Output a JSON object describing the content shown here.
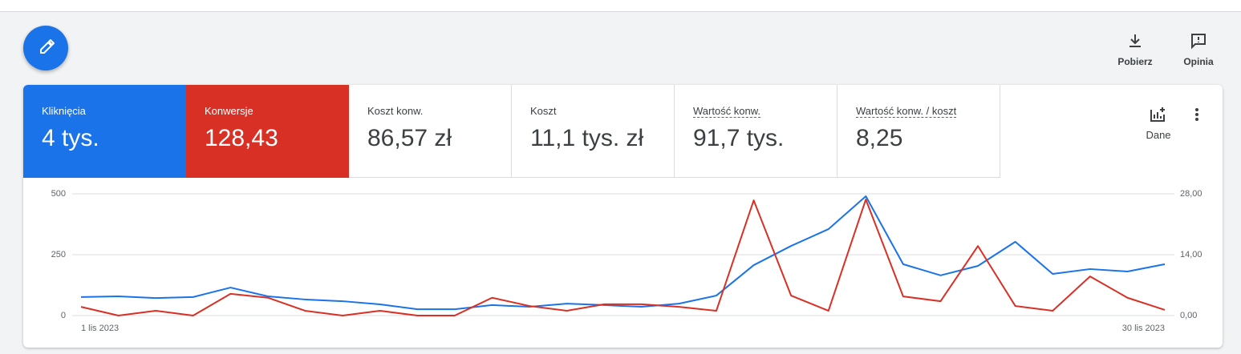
{
  "toolbar": {
    "actions": [
      {
        "label": "Pobierz"
      },
      {
        "label": "Opinia"
      }
    ]
  },
  "scorecards": [
    {
      "value": "4 tys."
    },
    {
      "value": "128,43"
    },
    {
      "label": "Koszt konw.",
      "value": "86,57 zł"
    },
    {
      "label": "Koszt",
      "value": "11,1 tys. zł"
    },
    {
      "label": "Wartość konw.",
      "value": "91,7 tys."
    },
    {
      "label": "Wartość konw. / koszt",
      "value": "8,25"
    }
  ],
  "side": {
    "label": "Dane"
  },
  "chart_data": {
    "type": "line",
    "x": [
      "1 lis 2023",
      null,
      null,
      null,
      null,
      null,
      null,
      null,
      null,
      null,
      null,
      null,
      null,
      null,
      null,
      null,
      null,
      null,
      null,
      null,
      null,
      null,
      null,
      null,
      null,
      null,
      null,
      null,
      null,
      "30 lis 2023"
    ],
    "series": [
      {
        "name": "Kliknięcia",
        "color": "#1a73e8",
        "values": [
          76,
          79,
          72,
          76,
          115,
          79,
          66,
          59,
          46,
          26,
          26,
          43,
          36,
          49,
          43,
          36,
          49,
          82,
          207,
          286,
          355,
          490,
          211,
          165,
          204,
          303,
          171,
          191,
          181,
          211
        ]
      },
      {
        "name": "Konwersje",
        "color": "#d93025",
        "axis": "y2",
        "values": [
          2.0,
          0,
          1.1,
          0,
          5.0,
          4.1,
          1.1,
          0,
          1.1,
          0,
          0,
          4.1,
          2.2,
          1.1,
          2.6,
          2.6,
          2.0,
          1.1,
          26.5,
          4.6,
          1.1,
          26.7,
          4.4,
          3.3,
          16.0,
          2.2,
          1.1,
          9.0,
          4.1,
          1.3
        ]
      }
    ],
    "ylim": [
      0,
      500
    ],
    "yticks": [
      0,
      250,
      500
    ],
    "y2lim": [
      0,
      28
    ],
    "y2ticks": [
      {
        "value": 0,
        "label": "0,00"
      },
      {
        "value": 14,
        "label": "14,00"
      },
      {
        "value": 28,
        "label": "28,00"
      }
    ],
    "grid": true
  }
}
